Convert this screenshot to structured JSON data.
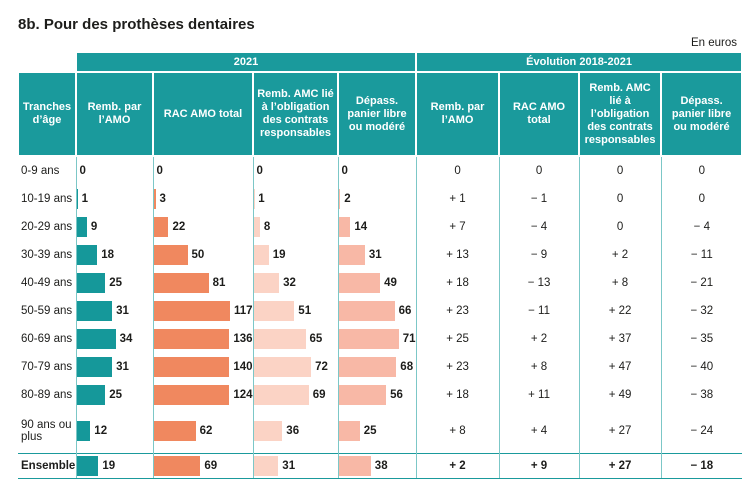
{
  "title": "8b. Pour des prothèses dentaires",
  "unit": "En euros",
  "table": {
    "groups": [
      "2021",
      "Évolution 2018-2021"
    ],
    "columns": [
      "Tranches d’âge",
      "Remb. par l’AMO",
      "RAC AMO total",
      "Remb. AMC lié à l’obligation des contrats responsables",
      "Dépass. panier libre ou modéré",
      "Remb. par l’AMO",
      "RAC AMO total",
      "Remb. AMC lié à l’obligation des contrats responsables",
      "Dépass. panier libre ou modéré"
    ],
    "rows": [
      {
        "label": "0-9 ans",
        "values": [
          0,
          0,
          0,
          0
        ],
        "evolution": [
          "0",
          "0",
          "0",
          "0"
        ]
      },
      {
        "label": "10-19 ans",
        "values": [
          1,
          3,
          1,
          2
        ],
        "evolution": [
          "+ 1",
          "− 1",
          "0",
          "0"
        ]
      },
      {
        "label": "20-29 ans",
        "values": [
          9,
          22,
          8,
          14
        ],
        "evolution": [
          "+ 7",
          "− 4",
          "0",
          "− 4"
        ]
      },
      {
        "label": "30-39 ans",
        "values": [
          18,
          50,
          19,
          31
        ],
        "evolution": [
          "+ 13",
          "− 9",
          "+ 2",
          "− 11"
        ]
      },
      {
        "label": "40-49 ans",
        "values": [
          25,
          81,
          32,
          49
        ],
        "evolution": [
          "+ 18",
          "− 13",
          "+ 8",
          "− 21"
        ]
      },
      {
        "label": "50-59 ans",
        "values": [
          31,
          117,
          51,
          66
        ],
        "evolution": [
          "+ 23",
          "− 11",
          "+ 22",
          "− 32"
        ]
      },
      {
        "label": "60-69 ans",
        "values": [
          34,
          136,
          65,
          71
        ],
        "evolution": [
          "+ 25",
          "+ 2",
          "+ 37",
          "− 35"
        ]
      },
      {
        "label": "70-79 ans",
        "values": [
          31,
          140,
          72,
          68
        ],
        "evolution": [
          "+ 23",
          "+ 8",
          "+ 47",
          "− 40"
        ]
      },
      {
        "label": "80-89 ans",
        "values": [
          25,
          124,
          69,
          56
        ],
        "evolution": [
          "+ 18",
          "+ 11",
          "+ 49",
          "− 38"
        ]
      },
      {
        "label": "90 ans ou plus",
        "values": [
          12,
          62,
          36,
          25
        ],
        "evolution": [
          "+ 8",
          "+ 4",
          "+ 27",
          "− 24"
        ]
      },
      {
        "label": "Ensemble",
        "values": [
          19,
          69,
          31,
          38
        ],
        "evolution": [
          "+ 2",
          "+ 9",
          "+ 27",
          "− 18"
        ]
      }
    ]
  }
}
